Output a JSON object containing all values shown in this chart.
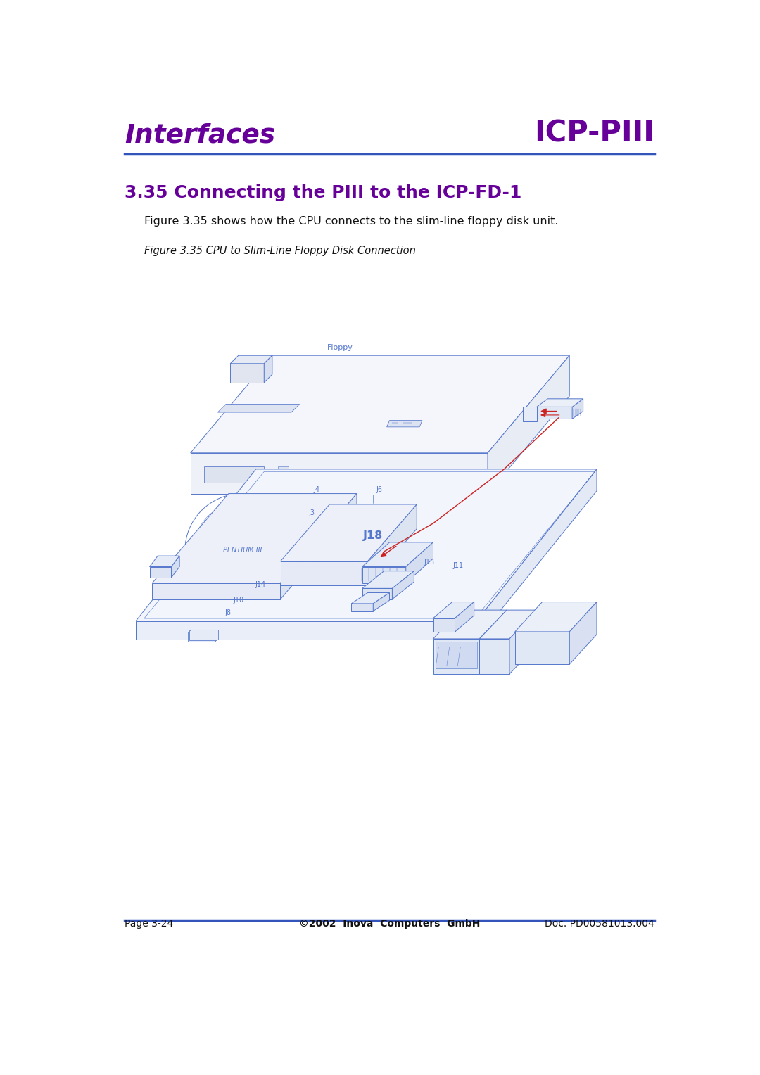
{
  "page_bg": "#ffffff",
  "header_left": "Interfaces",
  "header_right": "ICP-PIII",
  "header_color": "#660099",
  "header_line_color": "#3355bb",
  "section_title": "3.35 Connecting the PIII to the ICP-FD-1",
  "section_color": "#660099",
  "body_text": "Figure 3.35 shows how the CPU connects to the slim-line floppy disk unit.",
  "body_color": "#111111",
  "figure_caption": "Figure 3.35 CPU to Slim-Line Floppy Disk Connection",
  "caption_color": "#111111",
  "dc": "#5577cc",
  "dc_light": "#aabbdd",
  "arrow_color": "#cc2222",
  "label_color": "#5577cc",
  "footer_line_color": "#3355bb",
  "footer_left": "Page 3-24",
  "footer_center": "©2002  Inova  Computers  GmbH",
  "footer_right": "Doc. PD00581013.004",
  "footer_color": "#111111",
  "lw": 0.7
}
